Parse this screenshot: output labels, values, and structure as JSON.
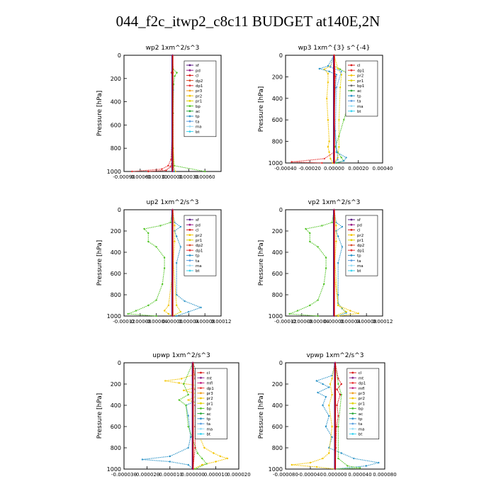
{
  "figure": {
    "title": "044_f2c_itwp2_c8c11  BUDGET at140E,2N"
  },
  "colors": {
    "sf": "#5b1a84",
    "pd": "#9a1d87",
    "cl": "#d81b1b",
    "dp2": "#d94a2a",
    "dp1": "#e83535",
    "pr3": "#f0a020",
    "pr2": "#f3c500",
    "pr1": "#e2d200",
    "bp": "#55c52a",
    "ac": "#2aa83a",
    "tp": "#2f95c8",
    "ta": "#5aa0e0",
    "ma": "#9adcf5",
    "bt": "#39d3f0",
    "mt": "#8a2a92",
    "mfl": "#c02080",
    "pr": "#e0b020",
    "bt_line": "#cc0000"
  },
  "chart_data": [
    {
      "type": "line",
      "title": "wp2   1xm^2/s^3",
      "ylabel": "Pressure [hPa]",
      "xlim": [
        -0.0009,
        0.0009
      ],
      "ylim": [
        1000,
        0
      ],
      "xticks": [
        "-0.00090",
        "-0.00060",
        "-0.00030",
        "0.00000",
        "0.00030",
        "0.00060"
      ],
      "xtick_values": [
        -0.0009,
        -0.0006,
        -0.0003,
        0.0,
        0.0003,
        0.0006
      ],
      "yticks": [
        0,
        200,
        400,
        600,
        800,
        1000
      ],
      "legend": [
        "sf",
        "pd",
        "cl",
        "dp2",
        "dp1",
        "pr3",
        "pr2",
        "pr1",
        "bp",
        "ac",
        "tp",
        "ta",
        "ma",
        "bt"
      ],
      "series": [
        {
          "key": "dp1",
          "p": [
            0,
            100,
            150,
            200,
            300,
            600,
            900,
            950,
            980,
            1000
          ],
          "v": [
            0,
            0,
            -2e-05,
            0,
            0,
            0,
            -3e-05,
            -8e-05,
            -0.0002,
            -0.00075
          ]
        },
        {
          "key": "cl",
          "p": [
            0,
            100,
            300,
            600,
            900,
            960,
            990,
            1000
          ],
          "v": [
            0,
            0,
            0,
            0,
            0,
            -4e-05,
            -0.00012,
            -0.00045
          ]
        },
        {
          "key": "bp",
          "p": [
            0,
            120,
            150,
            180,
            250,
            500,
            800,
            950,
            1000
          ],
          "v": [
            0,
            1e-05,
            8e-05,
            4e-05,
            2e-05,
            1e-05,
            1e-05,
            3e-05,
            0.0006
          ]
        },
        {
          "key": "pr2",
          "p": [
            0,
            150,
            250,
            600,
            950,
            1000
          ],
          "v": [
            0,
            1e-05,
            0,
            0,
            2e-05,
            5e-05
          ]
        },
        {
          "key": "tp",
          "p": [
            0,
            300,
            700,
            950,
            1000
          ],
          "v": [
            0,
            1e-05,
            0,
            1e-05,
            3e-05
          ]
        },
        {
          "key": "pd",
          "p": [
            0,
            500,
            1000
          ],
          "v": [
            0,
            0,
            0
          ]
        }
      ]
    },
    {
      "type": "line",
      "title": "wp3   1xm^{3} s^{-4}",
      "ylabel": "Pressure [hPa]",
      "xlim": [
        -0.0004,
        0.0004
      ],
      "ylim": [
        1000,
        0
      ],
      "xticks": [
        "-0.00040",
        "-0.00020",
        "0.00000",
        "0.00020",
        "0.00040"
      ],
      "xtick_values": [
        -0.0004,
        -0.0002,
        0.0,
        0.0002,
        0.0004
      ],
      "yticks": [
        0,
        200,
        400,
        600,
        800,
        1000
      ],
      "legend": [
        "cl",
        "dp1",
        "pr2",
        "pr1",
        "bp1",
        "ac",
        "tp",
        "ta",
        "ma",
        "bt"
      ],
      "series": [
        {
          "key": "bp",
          "p": [
            0,
            100,
            130,
            160,
            200,
            300,
            450,
            600,
            750,
            850,
            900,
            950,
            980,
            1000
          ],
          "v": [
            0,
            0,
            5e-05,
            0.0001,
            0.00013,
            0.00015,
            0.00012,
            8e-05,
            4e-05,
            1e-05,
            3e-05,
            6e-05,
            8e-05,
            2e-05
          ]
        },
        {
          "key": "pr2",
          "p": [
            0,
            100,
            130,
            170,
            250,
            400,
            600,
            800,
            850,
            900,
            960,
            1000
          ],
          "v": [
            0,
            -3e-05,
            -8e-05,
            -5e-05,
            -5e-05,
            -6e-05,
            -5e-05,
            -4e-05,
            -5e-05,
            -4e-05,
            -3e-05,
            -1e-05
          ]
        },
        {
          "key": "pr1",
          "p": [
            0,
            120,
            180,
            300,
            600,
            850,
            950,
            1000
          ],
          "v": [
            0,
            3e-05,
            6e-05,
            5e-05,
            4e-05,
            4e-05,
            3e-05,
            0.0
          ]
        },
        {
          "key": "tp",
          "p": [
            0,
            100,
            125,
            150,
            180,
            300,
            600,
            900,
            950,
            980,
            1000
          ],
          "v": [
            0,
            -5e-05,
            -0.00012,
            -4e-05,
            2e-05,
            1e-05,
            0.0,
            2e-05,
            0.0001,
            8e-05,
            0.0
          ]
        },
        {
          "key": "ta",
          "p": [
            0,
            110,
            150,
            300,
            700,
            970,
            1000
          ],
          "v": [
            0,
            -3e-05,
            6e-05,
            2e-05,
            1e-05,
            3e-05,
            0.0
          ]
        },
        {
          "key": "dp1",
          "p": [
            0,
            500,
            900,
            960,
            990,
            1000
          ],
          "v": [
            0,
            0,
            0,
            -8e-05,
            -0.00035,
            -0.0001
          ]
        },
        {
          "key": "cl",
          "p": [
            0,
            200,
            600,
            1000
          ],
          "v": [
            0,
            1e-05,
            0,
            0
          ]
        }
      ]
    },
    {
      "type": "line",
      "title": "up2   1xm^2/s^3",
      "ylabel": "Pressure [hPa]",
      "xlim": [
        -0.00012,
        0.00012
      ],
      "ylim": [
        1000,
        0
      ],
      "xticks": [
        "-0.00012",
        "-0.00008",
        "-0.00004",
        "0.00000",
        "0.00004",
        "0.00008",
        "0.00012"
      ],
      "xtick_values": [
        -0.00012,
        -8e-05,
        -4e-05,
        0.0,
        4e-05,
        8e-05,
        0.00012
      ],
      "yticks": [
        0,
        200,
        400,
        600,
        800,
        1000
      ],
      "legend": [
        "sf",
        "pd",
        "cl",
        "pr2",
        "pr1",
        "dp2",
        "dp1",
        "tp",
        "ta",
        "ma",
        "bt"
      ],
      "series": [
        {
          "key": "bp",
          "p": [
            0,
            120,
            150,
            180,
            220,
            300,
            350,
            450,
            550,
            700,
            850,
            900,
            950,
            980,
            1000
          ],
          "v": [
            0,
            -5e-06,
            -3e-05,
            -7e-05,
            -6e-05,
            -6e-05,
            -4e-05,
            -2e-05,
            -2e-05,
            -2.5e-05,
            -4e-05,
            -6e-05,
            -9e-05,
            -0.00011,
            -4e-05
          ]
        },
        {
          "key": "tp",
          "p": [
            0,
            120,
            160,
            200,
            250,
            350,
            500,
            800,
            860,
            920,
            960,
            1000
          ],
          "v": [
            0,
            5e-06,
            2e-05,
            5e-06,
            1e-05,
            2e-05,
            1e-05,
            1e-05,
            3e-05,
            7e-05,
            4e-05,
            1e-05
          ]
        },
        {
          "key": "pr2",
          "p": [
            0,
            150,
            300,
            600,
            900,
            950,
            980,
            1000
          ],
          "v": [
            0,
            5e-06,
            5e-06,
            0,
            -1e-05,
            -2e-05,
            -1e-05,
            0
          ]
        },
        {
          "key": "pr1",
          "p": [
            0,
            400,
            900,
            960,
            1000
          ],
          "v": [
            0,
            0,
            1e-05,
            2e-05,
            0
          ]
        },
        {
          "key": "dp1",
          "p": [
            0,
            300,
            1000
          ],
          "v": [
            0,
            0,
            0
          ]
        },
        {
          "key": "pd",
          "p": [
            0,
            500,
            1000
          ],
          "v": [
            0,
            0,
            0
          ]
        }
      ]
    },
    {
      "type": "line",
      "title": "vp2   1xm^2/s^3",
      "ylabel": "Pressure [hPa]",
      "xlim": [
        -0.00012,
        0.00012
      ],
      "ylim": [
        1000,
        0
      ],
      "xticks": [
        "-0.00012",
        "-0.00008",
        "-0.00004",
        "0.00000",
        "0.00004",
        "0.00008",
        "0.00012"
      ],
      "xtick_values": [
        -0.00012,
        -8e-05,
        -4e-05,
        0.0,
        4e-05,
        8e-05,
        0.00012
      ],
      "yticks": [
        0,
        200,
        400,
        600,
        800,
        1000
      ],
      "legend": [
        "sf",
        "pd",
        "cl",
        "pr2",
        "pr1",
        "dp2",
        "dp1",
        "tp",
        "ta",
        "ma",
        "bt"
      ],
      "series": [
        {
          "key": "bp",
          "p": [
            0,
            120,
            150,
            180,
            220,
            300,
            350,
            450,
            550,
            700,
            850,
            900,
            950,
            980,
            1000
          ],
          "v": [
            0,
            -5e-06,
            -3e-05,
            -7e-05,
            -6e-05,
            -6e-05,
            -4e-05,
            -2e-05,
            -2e-05,
            -2.5e-05,
            -4e-05,
            -6e-05,
            -9e-05,
            -0.00011,
            -4e-05
          ]
        },
        {
          "key": "tp",
          "p": [
            0,
            120,
            160,
            200,
            250,
            350,
            500,
            800,
            880,
            930,
            970,
            1000
          ],
          "v": [
            0,
            5e-06,
            2e-05,
            5e-06,
            1e-05,
            2e-05,
            1e-05,
            1e-05,
            1e-05,
            2e-05,
            3e-05,
            1e-05
          ]
        },
        {
          "key": "pr2",
          "p": [
            0,
            150,
            300,
            600,
            900,
            950,
            975,
            1000
          ],
          "v": [
            0,
            5e-06,
            5e-06,
            0,
            1e-05,
            4e-05,
            6e-05,
            1e-05
          ]
        },
        {
          "key": "pr1",
          "p": [
            0,
            400,
            900,
            960,
            1000
          ],
          "v": [
            0,
            0,
            1e-05,
            3e-05,
            0
          ]
        },
        {
          "key": "dp1",
          "p": [
            0,
            300,
            1000
          ],
          "v": [
            0,
            0,
            0
          ]
        },
        {
          "key": "pd",
          "p": [
            0,
            500,
            1000
          ],
          "v": [
            0,
            0,
            0
          ]
        }
      ]
    },
    {
      "type": "line",
      "title": "upwp   1xm^2/s^3",
      "ylabel": "Pressure [hPa]",
      "xlim": [
        -3e-05,
        2e-05
      ],
      "ylim": [
        1000,
        0
      ],
      "xticks": [
        "-0.000030",
        "-0.000020",
        "-0.000010",
        "0.000000",
        "0.000010",
        "0.000020"
      ],
      "xtick_values": [
        -3e-05,
        -2e-05,
        -1e-05,
        0.0,
        1e-05,
        2e-05
      ],
      "yticks": [
        0,
        200,
        400,
        600,
        800,
        1000
      ],
      "legend": [
        "cl",
        "mt",
        "mfl",
        "dp1",
        "pr3",
        "pr2",
        "pr1",
        "bp",
        "ac",
        "tp",
        "ta",
        "ma",
        "bt"
      ],
      "series": [
        {
          "key": "pr2",
          "p": [
            0,
            100,
            150,
            170,
            190,
            220,
            260,
            300,
            350,
            400,
            500,
            600,
            700,
            800,
            850,
            880,
            900,
            930,
            960,
            1000
          ],
          "v": [
            0,
            2e-06,
            -5e-06,
            -1.2e-05,
            -6e-06,
            4e-06,
            -4e-06,
            3e-06,
            -2e-06,
            4e-06,
            1e-06,
            2e-06,
            3e-06,
            5e-06,
            9e-06,
            1.2e-05,
            1.5e-05,
            1e-05,
            4e-06,
            0
          ]
        },
        {
          "key": "tp",
          "p": [
            0,
            120,
            150,
            180,
            200,
            230,
            270,
            300,
            350,
            400,
            500,
            700,
            800,
            880,
            910,
            930,
            960,
            1000
          ],
          "v": [
            0,
            2e-06,
            6e-06,
            8e-06,
            4e-06,
            6e-06,
            2e-06,
            3e-06,
            2e-06,
            -3e-06,
            -2e-06,
            -1e-06,
            -2e-06,
            -1e-05,
            -2.2e-05,
            -1e-05,
            -2e-06,
            0
          ]
        },
        {
          "key": "bp",
          "p": [
            0,
            200,
            300,
            350,
            400,
            600,
            850,
            900,
            950,
            1000
          ],
          "v": [
            0,
            -4e-06,
            -2e-06,
            -6e-06,
            -3e-06,
            -2e-06,
            2e-06,
            4e-06,
            6e-06,
            1e-06
          ]
        },
        {
          "key": "cl",
          "p": [
            0,
            150,
            200,
            250,
            300,
            400,
            600,
            800,
            1000
          ],
          "v": [
            0,
            1e-06,
            3e-06,
            1e-06,
            3e-06,
            1e-06,
            1e-06,
            1e-06,
            0
          ]
        },
        {
          "key": "pd",
          "p": [
            0,
            300,
            700,
            1000
          ],
          "v": [
            0,
            0,
            0,
            0
          ]
        }
      ]
    },
    {
      "type": "line",
      "title": "vpwp   1xm^2/s^3",
      "ylabel": "Pressure [hPa]",
      "xlim": [
        -8e-05,
        8e-05
      ],
      "ylim": [
        1000,
        0
      ],
      "xticks": [
        "-0.000080",
        "-0.000040",
        "0.000000",
        "0.000040",
        "0.000080"
      ],
      "xtick_values": [
        -8e-05,
        -4e-05,
        0.0,
        4e-05,
        8e-05
      ],
      "yticks": [
        0,
        200,
        400,
        600,
        800,
        1000
      ],
      "legend": [
        "cl",
        "mt",
        "dp1",
        "mfl",
        "pr3",
        "pr2",
        "pr1",
        "bp",
        "ac",
        "tp",
        "ta",
        "ma",
        "bt"
      ],
      "series": [
        {
          "key": "tp",
          "p": [
            0,
            120,
            170,
            200,
            230,
            280,
            320,
            400,
            500,
            600,
            700,
            800,
            850,
            900,
            940,
            970,
            1000
          ],
          "v": [
            0,
            -5e-06,
            -3e-05,
            -2e-05,
            -1e-05,
            -2.8e-05,
            -1.5e-05,
            -2e-05,
            -1e-05,
            -1.5e-05,
            -5e-06,
            -1e-05,
            1e-05,
            3e-05,
            7e-05,
            5e-05,
            0
          ]
        },
        {
          "key": "pr2",
          "p": [
            0,
            150,
            200,
            300,
            400,
            600,
            850,
            900,
            940,
            960,
            980,
            1000
          ],
          "v": [
            0,
            -5e-06,
            -8e-06,
            -5e-06,
            -1e-05,
            -5e-06,
            -1e-05,
            -2e-05,
            -4e-05,
            -7e-05,
            -3e-05,
            0
          ]
        },
        {
          "key": "bp",
          "p": [
            0,
            200,
            300,
            600,
            900,
            970,
            990,
            1000
          ],
          "v": [
            0,
            5e-06,
            1e-05,
            5e-06,
            5e-06,
            2e-05,
            4e-05,
            0
          ]
        },
        {
          "key": "cl",
          "p": [
            0,
            150,
            200,
            250,
            300,
            400,
            500,
            600,
            800,
            1000
          ],
          "v": [
            0,
            5e-06,
            1e-05,
            3e-06,
            8e-06,
            3e-06,
            5e-06,
            2e-06,
            1e-06,
            0
          ]
        },
        {
          "key": "pd",
          "p": [
            0,
            300,
            700,
            1000
          ],
          "v": [
            0,
            0,
            0,
            0
          ]
        }
      ]
    }
  ]
}
